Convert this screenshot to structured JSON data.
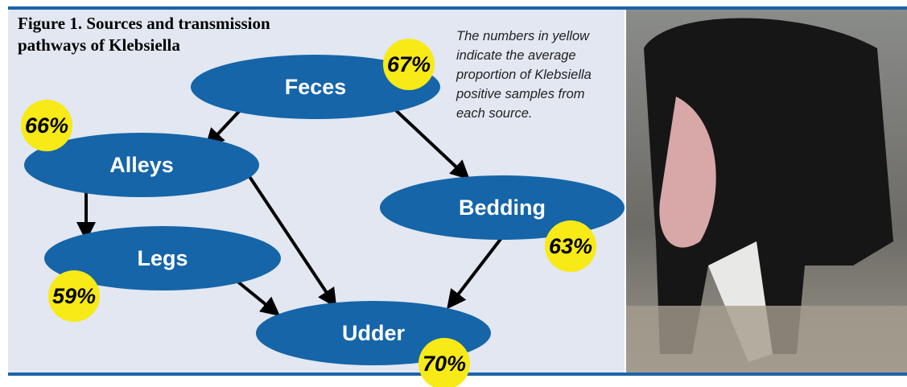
{
  "figure": {
    "title_lines": [
      "Figure 1. Sources and transmission",
      "pathways of Klebsiella"
    ],
    "note_lines": [
      "The numbers in yellow",
      "indicate the average",
      "proportion of Klebsiella",
      "positive samples from",
      "each source."
    ],
    "nodes": [
      {
        "label": "Feces",
        "percent": "67%"
      },
      {
        "label": "Alleys",
        "percent": "66%"
      },
      {
        "label": "Bedding",
        "percent": "63%"
      },
      {
        "label": "Legs",
        "percent": "59%"
      },
      {
        "label": "Udder",
        "percent": "70%"
      }
    ]
  }
}
